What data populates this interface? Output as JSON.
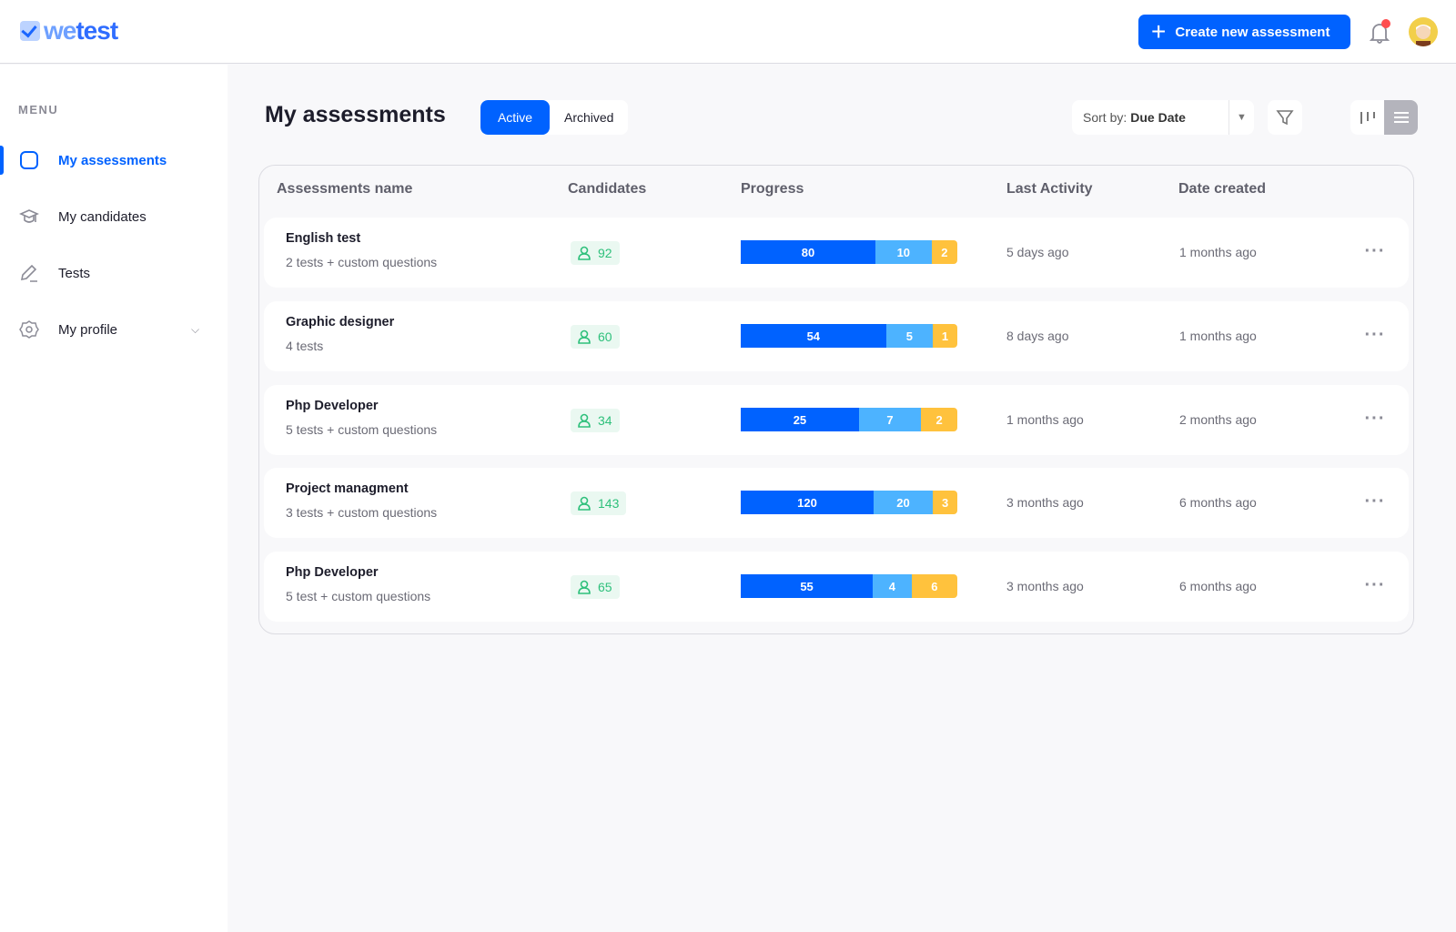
{
  "brand": {
    "logo_text": "wetest"
  },
  "header": {
    "create_label": "Create new assessment"
  },
  "sidebar": {
    "menu_label": "MENU",
    "items": [
      {
        "label": "My assessments"
      },
      {
        "label": "My candidates"
      },
      {
        "label": "Tests"
      },
      {
        "label": "My profile"
      }
    ]
  },
  "main": {
    "title": "My assessments",
    "tabs": [
      {
        "label": "Active"
      },
      {
        "label": "Archived"
      }
    ],
    "sort": {
      "prefix": "Sort by:",
      "value": "Due Date"
    },
    "columns": [
      "Assessments name",
      "Candidates",
      "Progress",
      "Last Activity",
      "Date created"
    ],
    "rows": [
      {
        "name": "English test",
        "subtitle": "2 tests + custom questions",
        "candidates": "92",
        "progress": [
          80,
          10,
          2
        ],
        "last_activity": "5 days ago",
        "date_created": "1 months ago"
      },
      {
        "name": "Graphic designer",
        "subtitle": "4 tests",
        "candidates": "60",
        "progress": [
          54,
          5,
          1
        ],
        "last_activity": "8 days ago",
        "date_created": "1 months ago"
      },
      {
        "name": "Php Developer",
        "subtitle": "5 tests + custom questions",
        "candidates": "34",
        "progress": [
          25,
          7,
          2
        ],
        "last_activity": "1 months ago",
        "date_created": "2 months ago"
      },
      {
        "name": "Project managment",
        "subtitle": "3 tests + custom questions",
        "candidates": "143",
        "progress": [
          120,
          20,
          3
        ],
        "last_activity": "3 months ago",
        "date_created": "6 months ago"
      },
      {
        "name": "Php Developer",
        "subtitle": "5 test + custom questions",
        "candidates": "65",
        "progress": [
          55,
          4,
          6
        ],
        "last_activity": "3 months ago",
        "date_created": "6 months ago"
      }
    ]
  },
  "colors": {
    "primary": "#0062ff",
    "secondary": "#4db3ff",
    "tertiary": "#ffc23d",
    "candidate": "#2ec07b"
  }
}
